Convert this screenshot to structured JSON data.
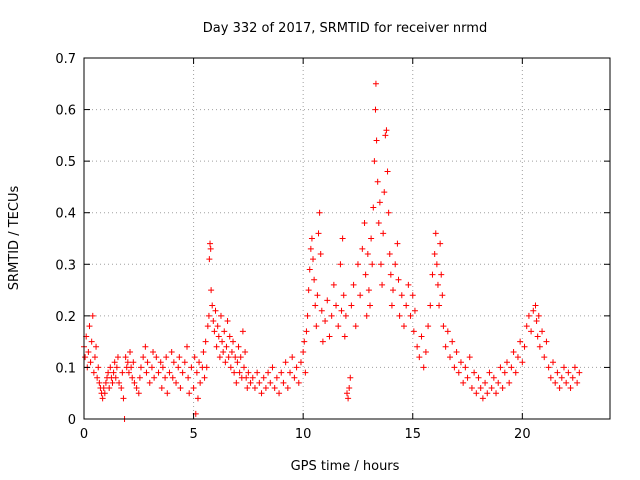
{
  "chart_data": {
    "type": "scatter",
    "title": "Day 332 of 2017, SRMTID for receiver nrmd",
    "xlabel": "GPS time / hours",
    "ylabel": "SRMTID / TECUs",
    "xlim": [
      0,
      24
    ],
    "ylim": [
      0,
      0.7
    ],
    "xticks": [
      0,
      5,
      10,
      15,
      20
    ],
    "yticks": [
      0,
      0.1,
      0.2,
      0.3,
      0.4,
      0.5,
      0.6,
      0.7
    ],
    "grid": true,
    "marker": "+",
    "color": "#ff0000",
    "series": [
      {
        "name": "SRMTID",
        "points": [
          [
            0.0,
            0.14
          ],
          [
            0.05,
            0.12
          ],
          [
            0.1,
            0.16
          ],
          [
            0.15,
            0.1
          ],
          [
            0.2,
            0.13
          ],
          [
            0.25,
            0.18
          ],
          [
            0.3,
            0.11
          ],
          [
            0.35,
            0.15
          ],
          [
            0.4,
            0.2
          ],
          [
            0.45,
            0.09
          ],
          [
            0.5,
            0.12
          ],
          [
            0.55,
            0.14
          ],
          [
            0.6,
            0.08
          ],
          [
            0.65,
            0.1
          ],
          [
            0.7,
            0.07
          ],
          [
            0.75,
            0.06
          ],
          [
            0.8,
            0.05
          ],
          [
            0.85,
            0.04
          ],
          [
            0.9,
            0.06
          ],
          [
            0.95,
            0.05
          ],
          [
            1.0,
            0.07
          ],
          [
            1.05,
            0.08
          ],
          [
            1.1,
            0.09
          ],
          [
            1.15,
            0.06
          ],
          [
            1.2,
            0.1
          ],
          [
            1.25,
            0.08
          ],
          [
            1.3,
            0.07
          ],
          [
            1.35,
            0.09
          ],
          [
            1.4,
            0.11
          ],
          [
            1.45,
            0.08
          ],
          [
            1.5,
            0.1
          ],
          [
            1.55,
            0.12
          ],
          [
            1.6,
            0.07
          ],
          [
            1.7,
            0.06
          ],
          [
            1.75,
            0.09
          ],
          [
            1.8,
            0.04
          ],
          [
            1.85,
            0.0
          ],
          [
            1.9,
            0.12
          ],
          [
            1.95,
            0.1
          ],
          [
            2.0,
            0.11
          ],
          [
            2.05,
            0.09
          ],
          [
            2.1,
            0.13
          ],
          [
            2.15,
            0.1
          ],
          [
            2.2,
            0.08
          ],
          [
            2.25,
            0.11
          ],
          [
            2.3,
            0.07
          ],
          [
            2.4,
            0.06
          ],
          [
            2.5,
            0.05
          ],
          [
            2.55,
            0.08
          ],
          [
            2.6,
            0.1
          ],
          [
            2.7,
            0.12
          ],
          [
            2.8,
            0.14
          ],
          [
            2.85,
            0.09
          ],
          [
            2.9,
            0.11
          ],
          [
            3.0,
            0.07
          ],
          [
            3.1,
            0.1
          ],
          [
            3.15,
            0.13
          ],
          [
            3.2,
            0.08
          ],
          [
            3.3,
            0.12
          ],
          [
            3.4,
            0.09
          ],
          [
            3.5,
            0.11
          ],
          [
            3.55,
            0.06
          ],
          [
            3.6,
            0.1
          ],
          [
            3.7,
            0.08
          ],
          [
            3.75,
            0.12
          ],
          [
            3.8,
            0.05
          ],
          [
            3.9,
            0.09
          ],
          [
            4.0,
            0.13
          ],
          [
            4.05,
            0.08
          ],
          [
            4.1,
            0.11
          ],
          [
            4.2,
            0.07
          ],
          [
            4.3,
            0.1
          ],
          [
            4.35,
            0.12
          ],
          [
            4.4,
            0.06
          ],
          [
            4.5,
            0.09
          ],
          [
            4.6,
            0.11
          ],
          [
            4.7,
            0.14
          ],
          [
            4.75,
            0.08
          ],
          [
            4.8,
            0.05
          ],
          [
            4.9,
            0.1
          ],
          [
            5.0,
            0.06
          ],
          [
            5.05,
            0.12
          ],
          [
            5.1,
            0.01
          ],
          [
            5.15,
            0.09
          ],
          [
            5.2,
            0.04
          ],
          [
            5.25,
            0.11
          ],
          [
            5.3,
            0.07
          ],
          [
            5.4,
            0.1
          ],
          [
            5.45,
            0.13
          ],
          [
            5.5,
            0.08
          ],
          [
            5.55,
            0.15
          ],
          [
            5.6,
            0.1
          ],
          [
            5.65,
            0.18
          ],
          [
            5.7,
            0.2
          ],
          [
            5.72,
            0.31
          ],
          [
            5.75,
            0.34
          ],
          [
            5.78,
            0.33
          ],
          [
            5.8,
            0.25
          ],
          [
            5.85,
            0.22
          ],
          [
            5.9,
            0.19
          ],
          [
            5.95,
            0.17
          ],
          [
            6.0,
            0.21
          ],
          [
            6.05,
            0.14
          ],
          [
            6.1,
            0.18
          ],
          [
            6.15,
            0.16
          ],
          [
            6.2,
            0.12
          ],
          [
            6.25,
            0.2
          ],
          [
            6.3,
            0.15
          ],
          [
            6.35,
            0.13
          ],
          [
            6.4,
            0.17
          ],
          [
            6.45,
            0.11
          ],
          [
            6.5,
            0.14
          ],
          [
            6.55,
            0.19
          ],
          [
            6.6,
            0.12
          ],
          [
            6.65,
            0.16
          ],
          [
            6.7,
            0.1
          ],
          [
            6.75,
            0.13
          ],
          [
            6.8,
            0.15
          ],
          [
            6.85,
            0.09
          ],
          [
            6.9,
            0.12
          ],
          [
            6.95,
            0.07
          ],
          [
            7.0,
            0.11
          ],
          [
            7.05,
            0.14
          ],
          [
            7.1,
            0.09
          ],
          [
            7.15,
            0.12
          ],
          [
            7.2,
            0.08
          ],
          [
            7.25,
            0.17
          ],
          [
            7.3,
            0.1
          ],
          [
            7.35,
            0.13
          ],
          [
            7.4,
            0.08
          ],
          [
            7.45,
            0.06
          ],
          [
            7.5,
            0.09
          ],
          [
            7.6,
            0.07
          ],
          [
            7.7,
            0.08
          ],
          [
            7.8,
            0.06
          ],
          [
            7.9,
            0.09
          ],
          [
            8.0,
            0.07
          ],
          [
            8.1,
            0.05
          ],
          [
            8.2,
            0.08
          ],
          [
            8.3,
            0.06
          ],
          [
            8.4,
            0.09
          ],
          [
            8.5,
            0.07
          ],
          [
            8.6,
            0.1
          ],
          [
            8.7,
            0.06
          ],
          [
            8.8,
            0.08
          ],
          [
            8.9,
            0.05
          ],
          [
            9.0,
            0.09
          ],
          [
            9.1,
            0.07
          ],
          [
            9.2,
            0.11
          ],
          [
            9.3,
            0.06
          ],
          [
            9.4,
            0.09
          ],
          [
            9.5,
            0.12
          ],
          [
            9.6,
            0.08
          ],
          [
            9.7,
            0.1
          ],
          [
            9.8,
            0.07
          ],
          [
            9.9,
            0.11
          ],
          [
            10.0,
            0.13
          ],
          [
            10.05,
            0.15
          ],
          [
            10.1,
            0.09
          ],
          [
            10.15,
            0.17
          ],
          [
            10.2,
            0.2
          ],
          [
            10.25,
            0.25
          ],
          [
            10.3,
            0.29
          ],
          [
            10.35,
            0.33
          ],
          [
            10.4,
            0.35
          ],
          [
            10.45,
            0.31
          ],
          [
            10.5,
            0.27
          ],
          [
            10.55,
            0.22
          ],
          [
            10.6,
            0.18
          ],
          [
            10.65,
            0.24
          ],
          [
            10.7,
            0.36
          ],
          [
            10.75,
            0.4
          ],
          [
            10.8,
            0.32
          ],
          [
            10.85,
            0.21
          ],
          [
            10.9,
            0.15
          ],
          [
            11.0,
            0.19
          ],
          [
            11.1,
            0.23
          ],
          [
            11.2,
            0.16
          ],
          [
            11.3,
            0.2
          ],
          [
            11.4,
            0.26
          ],
          [
            11.5,
            0.22
          ],
          [
            11.6,
            0.18
          ],
          [
            11.7,
            0.3
          ],
          [
            11.75,
            0.21
          ],
          [
            11.8,
            0.35
          ],
          [
            11.85,
            0.24
          ],
          [
            11.9,
            0.16
          ],
          [
            11.95,
            0.2
          ],
          [
            12.0,
            0.05
          ],
          [
            12.05,
            0.04
          ],
          [
            12.1,
            0.06
          ],
          [
            12.15,
            0.08
          ],
          [
            12.2,
            0.22
          ],
          [
            12.3,
            0.26
          ],
          [
            12.4,
            0.18
          ],
          [
            12.5,
            0.3
          ],
          [
            12.6,
            0.24
          ],
          [
            12.7,
            0.33
          ],
          [
            12.8,
            0.38
          ],
          [
            12.85,
            0.28
          ],
          [
            12.9,
            0.2
          ],
          [
            12.95,
            0.32
          ],
          [
            13.0,
            0.25
          ],
          [
            13.05,
            0.22
          ],
          [
            13.1,
            0.35
          ],
          [
            13.15,
            0.3
          ],
          [
            13.2,
            0.41
          ],
          [
            13.25,
            0.5
          ],
          [
            13.3,
            0.6
          ],
          [
            13.32,
            0.65
          ],
          [
            13.35,
            0.54
          ],
          [
            13.4,
            0.46
          ],
          [
            13.45,
            0.38
          ],
          [
            13.5,
            0.42
          ],
          [
            13.55,
            0.3
          ],
          [
            13.6,
            0.26
          ],
          [
            13.65,
            0.36
          ],
          [
            13.7,
            0.44
          ],
          [
            13.75,
            0.55
          ],
          [
            13.8,
            0.56
          ],
          [
            13.85,
            0.48
          ],
          [
            13.9,
            0.4
          ],
          [
            13.95,
            0.32
          ],
          [
            14.0,
            0.28
          ],
          [
            14.05,
            0.22
          ],
          [
            14.1,
            0.25
          ],
          [
            14.2,
            0.3
          ],
          [
            14.3,
            0.34
          ],
          [
            14.35,
            0.27
          ],
          [
            14.4,
            0.2
          ],
          [
            14.5,
            0.24
          ],
          [
            14.6,
            0.18
          ],
          [
            14.7,
            0.22
          ],
          [
            14.8,
            0.26
          ],
          [
            14.9,
            0.2
          ],
          [
            15.0,
            0.24
          ],
          [
            15.05,
            0.17
          ],
          [
            15.1,
            0.21
          ],
          [
            15.2,
            0.14
          ],
          [
            15.3,
            0.12
          ],
          [
            15.4,
            0.16
          ],
          [
            15.5,
            0.1
          ],
          [
            15.6,
            0.13
          ],
          [
            15.7,
            0.18
          ],
          [
            15.8,
            0.22
          ],
          [
            15.9,
            0.28
          ],
          [
            16.0,
            0.32
          ],
          [
            16.05,
            0.36
          ],
          [
            16.1,
            0.3
          ],
          [
            16.15,
            0.26
          ],
          [
            16.2,
            0.22
          ],
          [
            16.25,
            0.34
          ],
          [
            16.3,
            0.28
          ],
          [
            16.35,
            0.24
          ],
          [
            16.4,
            0.18
          ],
          [
            16.5,
            0.14
          ],
          [
            16.6,
            0.17
          ],
          [
            16.7,
            0.12
          ],
          [
            16.8,
            0.15
          ],
          [
            16.9,
            0.1
          ],
          [
            17.0,
            0.13
          ],
          [
            17.1,
            0.09
          ],
          [
            17.2,
            0.11
          ],
          [
            17.3,
            0.07
          ],
          [
            17.4,
            0.1
          ],
          [
            17.5,
            0.08
          ],
          [
            17.6,
            0.12
          ],
          [
            17.7,
            0.06
          ],
          [
            17.8,
            0.09
          ],
          [
            17.9,
            0.05
          ],
          [
            18.0,
            0.08
          ],
          [
            18.1,
            0.06
          ],
          [
            18.2,
            0.04
          ],
          [
            18.3,
            0.07
          ],
          [
            18.4,
            0.05
          ],
          [
            18.5,
            0.09
          ],
          [
            18.6,
            0.06
          ],
          [
            18.7,
            0.08
          ],
          [
            18.8,
            0.05
          ],
          [
            18.9,
            0.07
          ],
          [
            19.0,
            0.1
          ],
          [
            19.1,
            0.06
          ],
          [
            19.2,
            0.09
          ],
          [
            19.3,
            0.11
          ],
          [
            19.4,
            0.07
          ],
          [
            19.5,
            0.1
          ],
          [
            19.6,
            0.13
          ],
          [
            19.7,
            0.09
          ],
          [
            19.8,
            0.12
          ],
          [
            19.9,
            0.15
          ],
          [
            20.0,
            0.11
          ],
          [
            20.1,
            0.14
          ],
          [
            20.2,
            0.18
          ],
          [
            20.3,
            0.2
          ],
          [
            20.4,
            0.17
          ],
          [
            20.5,
            0.21
          ],
          [
            20.6,
            0.22
          ],
          [
            20.65,
            0.19
          ],
          [
            20.7,
            0.16
          ],
          [
            20.75,
            0.2
          ],
          [
            20.8,
            0.14
          ],
          [
            20.9,
            0.17
          ],
          [
            21.0,
            0.12
          ],
          [
            21.1,
            0.15
          ],
          [
            21.2,
            0.1
          ],
          [
            21.3,
            0.08
          ],
          [
            21.4,
            0.11
          ],
          [
            21.5,
            0.07
          ],
          [
            21.6,
            0.09
          ],
          [
            21.7,
            0.06
          ],
          [
            21.8,
            0.08
          ],
          [
            21.9,
            0.1
          ],
          [
            22.0,
            0.07
          ],
          [
            22.1,
            0.09
          ],
          [
            22.2,
            0.06
          ],
          [
            22.3,
            0.08
          ],
          [
            22.4,
            0.1
          ],
          [
            22.5,
            0.07
          ],
          [
            22.6,
            0.09
          ]
        ]
      }
    ]
  }
}
